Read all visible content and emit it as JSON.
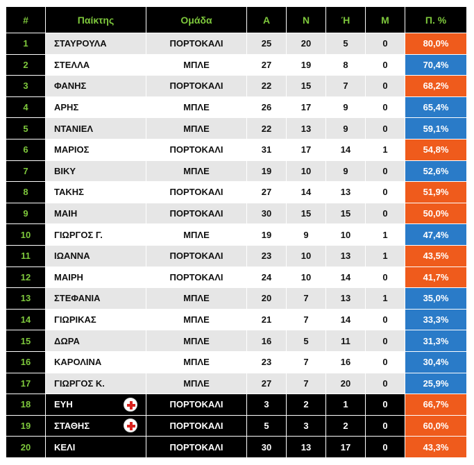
{
  "table": {
    "headers": [
      "#",
      "Παίκτης",
      "Ομάδα",
      "Α",
      "Ν",
      "Ή",
      "Μ",
      "Π. %"
    ],
    "colors": {
      "header_text": "#7ec83c",
      "orange": "#ef5b1c",
      "blue": "#2a7bc8"
    },
    "rows": [
      {
        "rank": "1",
        "player": "ΣΤΑΥΡΟΥΛΑ",
        "team": "ΠΟΡΤΟΚΑΛΙ",
        "a": "25",
        "n": "20",
        "i": "5",
        "m": "0",
        "pct": "80,0%",
        "pct_color": "orange",
        "style": "A",
        "icon": ""
      },
      {
        "rank": "2",
        "player": "ΣΤΕΛΛΑ",
        "team": "ΜΠΛΕ",
        "a": "27",
        "n": "19",
        "i": "8",
        "m": "0",
        "pct": "70,4%",
        "pct_color": "blue",
        "style": "B",
        "icon": ""
      },
      {
        "rank": "3",
        "player": "ΦΑΝΗΣ",
        "team": "ΠΟΡΤΟΚΑΛΙ",
        "a": "22",
        "n": "15",
        "i": "7",
        "m": "0",
        "pct": "68,2%",
        "pct_color": "orange",
        "style": "A",
        "icon": ""
      },
      {
        "rank": "4",
        "player": "ΑΡΗΣ",
        "team": "ΜΠΛΕ",
        "a": "26",
        "n": "17",
        "i": "9",
        "m": "0",
        "pct": "65,4%",
        "pct_color": "blue",
        "style": "B",
        "icon": ""
      },
      {
        "rank": "5",
        "player": "ΝΤΑΝΙΕΛ",
        "team": "ΜΠΛΕ",
        "a": "22",
        "n": "13",
        "i": "9",
        "m": "0",
        "pct": "59,1%",
        "pct_color": "blue",
        "style": "A",
        "icon": ""
      },
      {
        "rank": "6",
        "player": "ΜΑΡΙΟΣ",
        "team": "ΠΟΡΤΟΚΑΛΙ",
        "a": "31",
        "n": "17",
        "i": "14",
        "m": "1",
        "pct": "54,8%",
        "pct_color": "orange",
        "style": "B",
        "icon": ""
      },
      {
        "rank": "7",
        "player": "ΒΙΚΥ",
        "team": "ΜΠΛΕ",
        "a": "19",
        "n": "10",
        "i": "9",
        "m": "0",
        "pct": "52,6%",
        "pct_color": "blue",
        "style": "A",
        "icon": ""
      },
      {
        "rank": "8",
        "player": "ΤΑΚΗΣ",
        "team": "ΠΟΡΤΟΚΑΛΙ",
        "a": "27",
        "n": "14",
        "i": "13",
        "m": "0",
        "pct": "51,9%",
        "pct_color": "orange",
        "style": "B",
        "icon": ""
      },
      {
        "rank": "9",
        "player": "ΜΑΙΗ",
        "team": "ΠΟΡΤΟΚΑΛΙ",
        "a": "30",
        "n": "15",
        "i": "15",
        "m": "0",
        "pct": "50,0%",
        "pct_color": "orange",
        "style": "A",
        "icon": ""
      },
      {
        "rank": "10",
        "player": "ΓΙΩΡΓΟΣ Γ.",
        "team": "ΜΠΛΕ",
        "a": "19",
        "n": "9",
        "i": "10",
        "m": "1",
        "pct": "47,4%",
        "pct_color": "blue",
        "style": "B",
        "icon": ""
      },
      {
        "rank": "11",
        "player": "ΙΩΑΝΝΑ",
        "team": "ΠΟΡΤΟΚΑΛΙ",
        "a": "23",
        "n": "10",
        "i": "13",
        "m": "1",
        "pct": "43,5%",
        "pct_color": "orange",
        "style": "A",
        "icon": ""
      },
      {
        "rank": "12",
        "player": "ΜΑΙΡΗ",
        "team": "ΠΟΡΤΟΚΑΛΙ",
        "a": "24",
        "n": "10",
        "i": "14",
        "m": "0",
        "pct": "41,7%",
        "pct_color": "orange",
        "style": "B",
        "icon": ""
      },
      {
        "rank": "13",
        "player": "ΣΤΕΦΑΝΙΑ",
        "team": "ΜΠΛΕ",
        "a": "20",
        "n": "7",
        "i": "13",
        "m": "1",
        "pct": "35,0%",
        "pct_color": "blue",
        "style": "A",
        "icon": ""
      },
      {
        "rank": "14",
        "player": "ΓΙΩΡΙΚΑΣ",
        "team": "ΜΠΛΕ",
        "a": "21",
        "n": "7",
        "i": "14",
        "m": "0",
        "pct": "33,3%",
        "pct_color": "blue",
        "style": "B",
        "icon": ""
      },
      {
        "rank": "15",
        "player": "ΔΩΡΑ",
        "team": "ΜΠΛΕ",
        "a": "16",
        "n": "5",
        "i": "11",
        "m": "0",
        "pct": "31,3%",
        "pct_color": "blue",
        "style": "A",
        "icon": ""
      },
      {
        "rank": "16",
        "player": "ΚΑΡΟΛΙΝΑ",
        "team": "ΜΠΛΕ",
        "a": "23",
        "n": "7",
        "i": "16",
        "m": "0",
        "pct": "30,4%",
        "pct_color": "blue",
        "style": "B",
        "icon": ""
      },
      {
        "rank": "17",
        "player": "ΓΙΩΡΓΟΣ Κ.",
        "team": "ΜΠΛΕ",
        "a": "27",
        "n": "7",
        "i": "20",
        "m": "0",
        "pct": "25,9%",
        "pct_color": "blue",
        "style": "A",
        "icon": ""
      },
      {
        "rank": "18",
        "player": "ΕΥΗ",
        "team": "ΠΟΡΤΟΚΑΛΙ",
        "a": "3",
        "n": "2",
        "i": "1",
        "m": "0",
        "pct": "66,7%",
        "pct_color": "orange",
        "style": "X",
        "icon": "red-cross-icon"
      },
      {
        "rank": "19",
        "player": "ΣΤΑΘΗΣ",
        "team": "ΠΟΡΤΟΚΑΛΙ",
        "a": "5",
        "n": "3",
        "i": "2",
        "m": "0",
        "pct": "60,0%",
        "pct_color": "orange",
        "style": "X",
        "icon": "red-cross-icon"
      },
      {
        "rank": "20",
        "player": "ΚΕΛΙ",
        "team": "ΠΟΡΤΟΚΑΛΙ",
        "a": "30",
        "n": "13",
        "i": "17",
        "m": "0",
        "pct": "43,3%",
        "pct_color": "orange",
        "style": "X",
        "icon": ""
      }
    ]
  }
}
